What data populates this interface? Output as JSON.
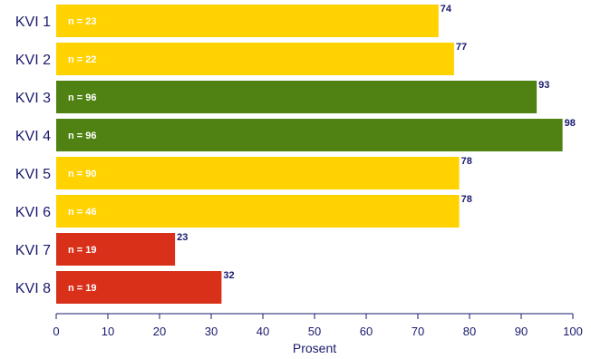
{
  "chart_data": {
    "type": "bar",
    "orientation": "horizontal",
    "categories": [
      "KVI 1",
      "KVI 2",
      "KVI 3",
      "KVI 4",
      "KVI 5",
      "KVI 6",
      "KVI 7",
      "KVI 8"
    ],
    "values": [
      74,
      77,
      93,
      98,
      78,
      78,
      23,
      32
    ],
    "value_labels": [
      "74",
      "77",
      "93",
      "98",
      "78",
      "78",
      "23",
      "32"
    ],
    "n_labels": [
      "n = 23",
      "n = 22",
      "n = 96",
      "n = 96",
      "n = 90",
      "n = 46",
      "n = 19",
      "n = 19"
    ],
    "bar_colors": [
      "#ffd200",
      "#ffd200",
      "#4f8212",
      "#4f8212",
      "#ffd200",
      "#ffd200",
      "#d9301a",
      "#d9301a"
    ],
    "xlabel": "Prosent",
    "xlim": [
      0,
      100
    ],
    "xticks": [
      0,
      10,
      20,
      30,
      40,
      50,
      60,
      70,
      80,
      90,
      100
    ],
    "grid": false,
    "axis_color": "#1a1a6e"
  }
}
